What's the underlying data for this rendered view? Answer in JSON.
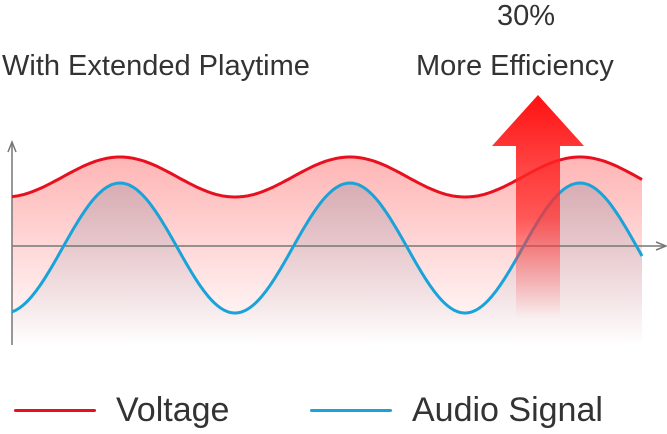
{
  "captions": {
    "left": "With Extended Playtime",
    "percent": "30%",
    "right": "More Efficiency"
  },
  "legend": {
    "voltage": "Voltage",
    "audio": "Audio Signal"
  },
  "colors": {
    "voltage": "#e8101f",
    "audio": "#1aa3d9",
    "arrow": "#ff1a1a",
    "axis": "#777777"
  },
  "icons": {
    "arrow": "up-arrow-icon"
  }
}
